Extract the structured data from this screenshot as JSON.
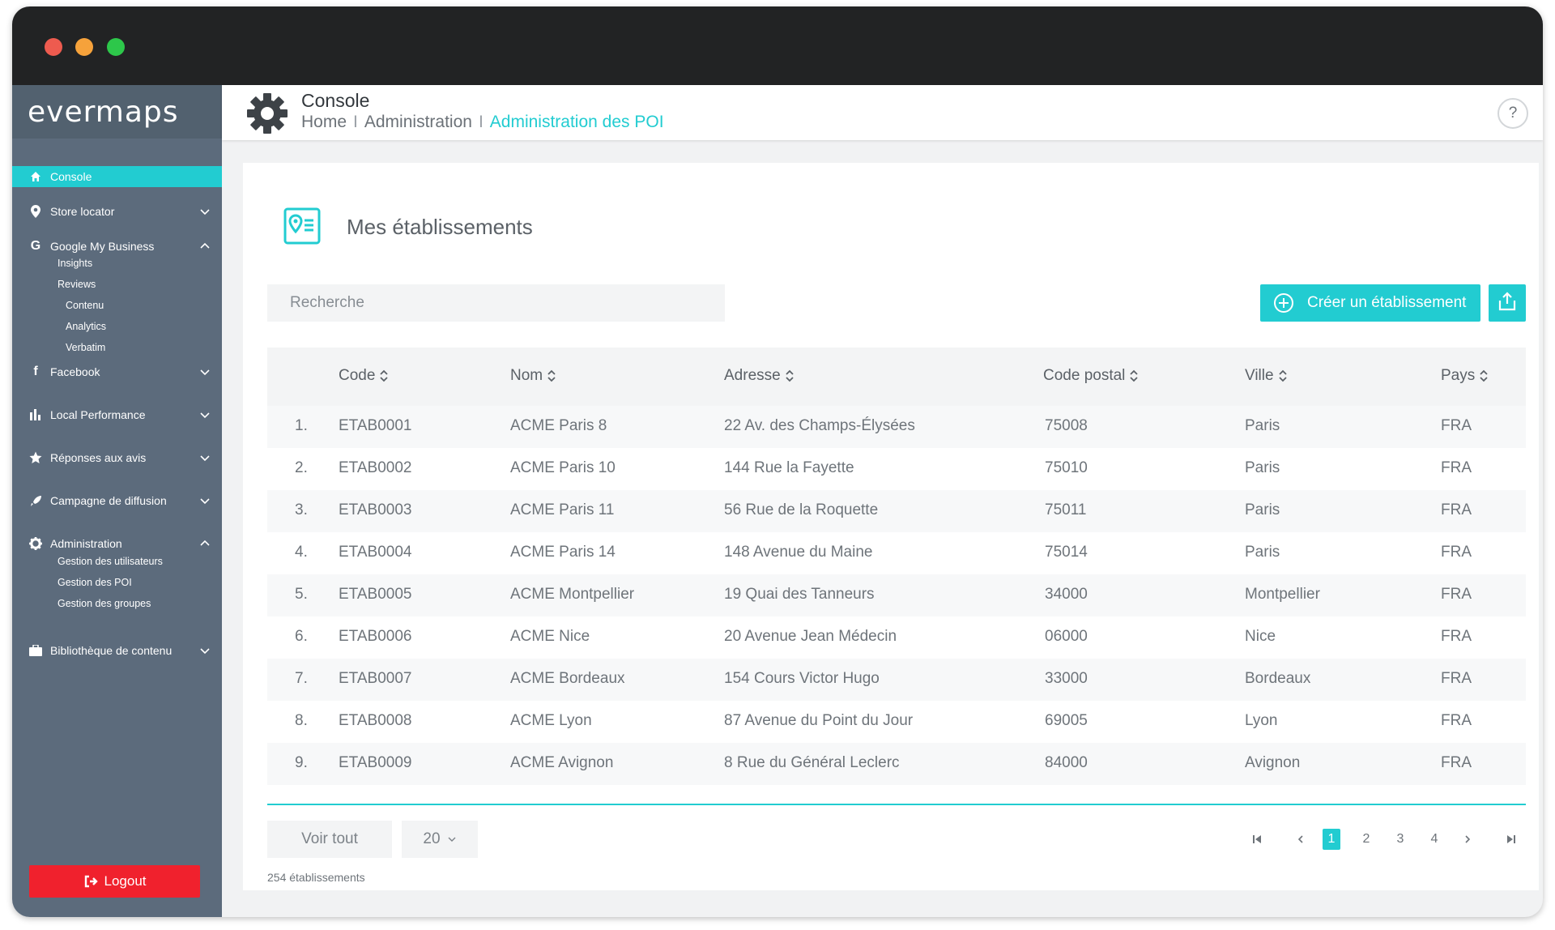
{
  "app": {
    "logo": "evermaps"
  },
  "sidebar": {
    "active": {
      "label": "Console",
      "icon": "home-icon"
    },
    "items": [
      {
        "label": "Store locator",
        "icon": "map-pin-icon",
        "expanded": false
      },
      {
        "label": "Google My Business",
        "icon": "google-icon",
        "expanded": true,
        "children": [
          "Insights",
          "Reviews",
          "Contenu",
          "Analytics",
          "Verbatim"
        ]
      },
      {
        "label": "Facebook",
        "icon": "facebook-icon",
        "expanded": false
      },
      {
        "label": "Local Performance",
        "icon": "bar-chart-icon",
        "expanded": false
      },
      {
        "label": "Réponses aux avis",
        "icon": "star-icon",
        "expanded": false
      },
      {
        "label": "Campagne de diffusion",
        "icon": "rocket-icon",
        "expanded": false
      },
      {
        "label": "Administration",
        "icon": "gear-icon",
        "expanded": true,
        "children": [
          "Gestion des utilisateurs",
          "Gestion des POI",
          "Gestion des groupes"
        ]
      },
      {
        "label": "Bibliothèque de contenu",
        "icon": "briefcase-icon",
        "expanded": false
      }
    ],
    "logout_label": "Logout"
  },
  "header": {
    "title": "Console",
    "breadcrumb": [
      "Home",
      "Administration",
      "Administration des POI"
    ],
    "separator": "I",
    "help_label": "?"
  },
  "card": {
    "title": "Mes établissements",
    "search_placeholder": "Recherche",
    "create_label": "Créer un établissement",
    "table": {
      "columns": [
        "Code",
        "Nom",
        "Adresse",
        "Code postal",
        "Ville",
        "Pays"
      ],
      "rows": [
        {
          "index": "1.",
          "code": "ETAB0001",
          "nom": "ACME Paris 8",
          "adresse": "22 Av. des Champs-Élysées",
          "cp": "75008",
          "ville": "Paris",
          "pays": "FRA"
        },
        {
          "index": "2.",
          "code": "ETAB0002",
          "nom": "ACME Paris 10",
          "adresse": "144 Rue la Fayette",
          "cp": "75010",
          "ville": "Paris",
          "pays": "FRA"
        },
        {
          "index": "3.",
          "code": "ETAB0003",
          "nom": "ACME Paris 11",
          "adresse": "56 Rue de la Roquette",
          "cp": "75011",
          "ville": "Paris",
          "pays": "FRA"
        },
        {
          "index": "4.",
          "code": "ETAB0004",
          "nom": "ACME Paris 14",
          "adresse": "148 Avenue du Maine",
          "cp": "75014",
          "ville": "Paris",
          "pays": "FRA"
        },
        {
          "index": "5.",
          "code": "ETAB0005",
          "nom": "ACME Montpellier",
          "adresse": "19 Quai des Tanneurs",
          "cp": "34000",
          "ville": "Montpellier",
          "pays": "FRA"
        },
        {
          "index": "6.",
          "code": "ETAB0006",
          "nom": "ACME Nice",
          "adresse": "20 Avenue Jean Médecin",
          "cp": "06000",
          "ville": "Nice",
          "pays": "FRA"
        },
        {
          "index": "7.",
          "code": "ETAB0007",
          "nom": "ACME Bordeaux",
          "adresse": "154 Cours Victor Hugo",
          "cp": "33000",
          "ville": "Bordeaux",
          "pays": "FRA"
        },
        {
          "index": "8.",
          "code": "ETAB0008",
          "nom": "ACME Lyon",
          "adresse": "87 Avenue du Point du Jour",
          "cp": "69005",
          "ville": "Lyon",
          "pays": "FRA"
        },
        {
          "index": "9.",
          "code": "ETAB0009",
          "nom": "ACME Avignon",
          "adresse": "8 Rue du Général Leclerc",
          "cp": "84000",
          "ville": "Avignon",
          "pays": "FRA"
        }
      ]
    },
    "footer": {
      "voir_tout": "Voir tout",
      "per_page": "20",
      "count_text": "254 établissements",
      "pages": [
        "1",
        "2",
        "3",
        "4"
      ],
      "current_page": "1"
    }
  },
  "colors": {
    "accent": "#22ccd1",
    "sidebar": "#5c6b7c",
    "logout": "#f0212d",
    "titlebar": "#222324"
  }
}
